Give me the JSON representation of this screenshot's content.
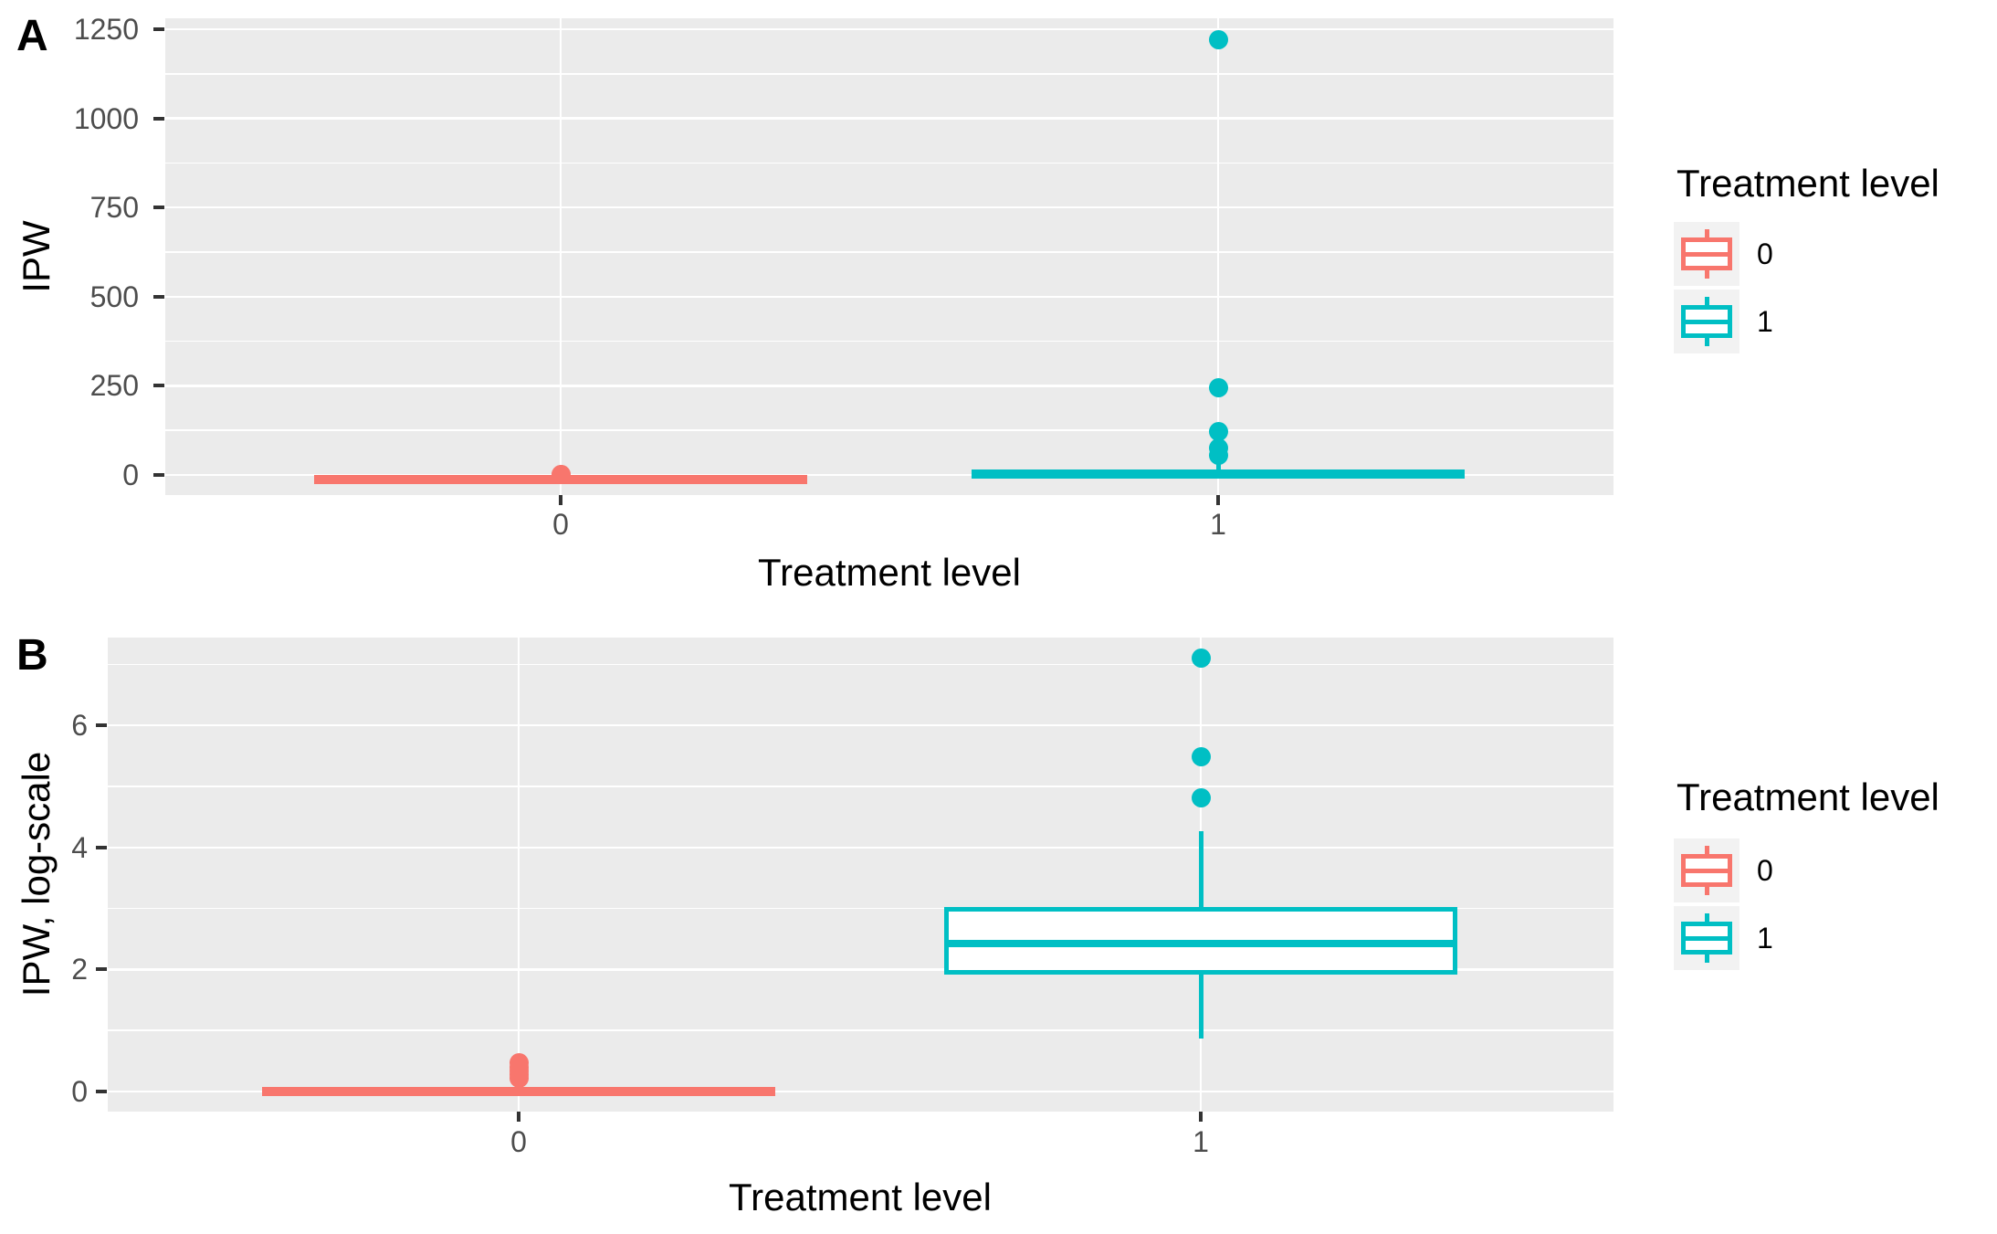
{
  "colors": {
    "treatment_0": "#F8766D",
    "treatment_1": "#00BFC4",
    "panel_background": "#EBEBEB",
    "gridline": "#FFFFFF",
    "tick_text": "#4D4D4D",
    "tick_mark": "#333333",
    "legend_key_background": "#F2F2F2"
  },
  "legend": {
    "title": "Treatment level",
    "position": "right",
    "entries": [
      {
        "label": "0",
        "color": "#F8766D"
      },
      {
        "label": "1",
        "color": "#00BFC4"
      }
    ]
  },
  "chart_data": [
    {
      "panel": "A",
      "tag": "A",
      "type": "boxplot",
      "title": "",
      "xlabel": "Treatment level",
      "ylabel": "IPW",
      "categories": [
        "0",
        "1"
      ],
      "ylim": [
        -56,
        1281
      ],
      "y_major_ticks": [
        0,
        250,
        500,
        750,
        1000,
        1250
      ],
      "y_minor_ticks": [
        125,
        375,
        625,
        875,
        1125
      ],
      "grid": true,
      "legend_position": "right",
      "series": [
        {
          "name": "0",
          "color": "#F8766D",
          "q1": 1.0,
          "median": 1.05,
          "q3": 1.1,
          "whisker_low": 1.0,
          "whisker_high": 1.6,
          "outliers": [
            1.4,
            1.65
          ]
        },
        {
          "name": "1",
          "color": "#00BFC4",
          "q1": 3,
          "median": 9,
          "q3": 16,
          "whisker_low": 1,
          "whisker_high": 71,
          "outliers": [
            55,
            75,
            122,
            244,
            1220
          ]
        }
      ]
    },
    {
      "panel": "B",
      "tag": "B",
      "type": "boxplot",
      "title": "",
      "xlabel": "Treatment level",
      "ylabel": "IPW, log-scale",
      "categories": [
        "0",
        "1"
      ],
      "ylim": [
        -0.33,
        7.44
      ],
      "y_major_ticks": [
        0,
        2,
        4,
        6
      ],
      "y_minor_ticks": [
        1,
        3,
        5,
        7
      ],
      "grid": true,
      "legend_position": "right",
      "series": [
        {
          "name": "0",
          "color": "#F8766D",
          "q1": 0.01,
          "median": 0.04,
          "q3": 0.08,
          "whisker_low": 0.0,
          "whisker_high": 0.17,
          "outliers": [
            0.22,
            0.28,
            0.34,
            0.4,
            0.47
          ]
        },
        {
          "name": "1",
          "color": "#00BFC4",
          "q1": 1.92,
          "median": 2.42,
          "q3": 3.03,
          "whisker_low": 0.87,
          "whisker_high": 4.26,
          "outliers": [
            4.81,
            5.49,
            7.1
          ]
        }
      ]
    }
  ]
}
